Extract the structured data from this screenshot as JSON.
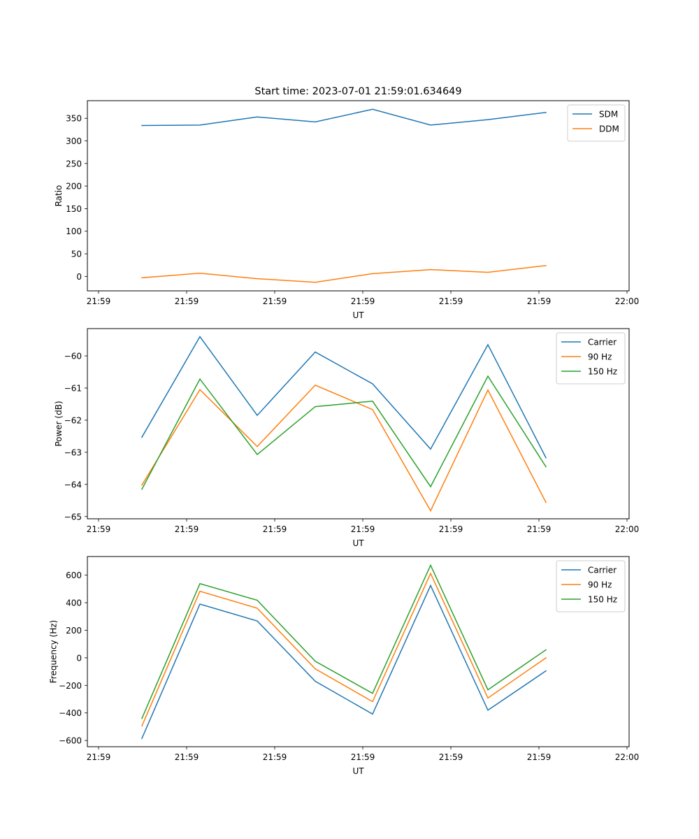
{
  "chart_data": [
    {
      "type": "line",
      "title": "Start time: 2023-07-01 21:59:01.634649",
      "xlabel": "UT",
      "ylabel": "Ratio",
      "x_tick_labels": [
        "21:59",
        "21:59",
        "21:59",
        "21:59",
        "21:59",
        "21:59",
        "21:59",
        "22:00"
      ],
      "y_ticks": [
        0,
        50,
        100,
        150,
        200,
        250,
        300,
        350
      ],
      "ylim": [
        -32,
        389
      ],
      "legend": "top-right",
      "grid": false,
      "series": [
        {
          "name": "SDM",
          "color": "#1f77b4",
          "values": [
            334,
            335,
            353,
            342,
            370,
            335,
            347,
            363
          ]
        },
        {
          "name": "DDM",
          "color": "#ff7f0e",
          "values": [
            -3,
            7,
            -5,
            -13,
            6,
            15,
            9,
            24
          ]
        }
      ]
    },
    {
      "type": "line",
      "title": "",
      "xlabel": "UT",
      "ylabel": "Power (dB)",
      "x_tick_labels": [
        "21:59",
        "21:59",
        "21:59",
        "21:59",
        "21:59",
        "21:59",
        "21:59",
        "22:00"
      ],
      "y_ticks": [
        -65,
        -64,
        -63,
        -62,
        -61,
        -60
      ],
      "ylim": [
        -65.07,
        -59.15
      ],
      "legend": "top-right",
      "grid": false,
      "series": [
        {
          "name": "Carrier",
          "color": "#1f77b4",
          "values": [
            -62.53,
            -59.4,
            -61.85,
            -59.88,
            -60.87,
            -62.9,
            -59.65,
            -63.17
          ]
        },
        {
          "name": "90 Hz",
          "color": "#ff7f0e",
          "values": [
            -64.02,
            -61.05,
            -62.82,
            -60.91,
            -61.67,
            -64.82,
            -61.06,
            -64.56
          ]
        },
        {
          "name": "150 Hz",
          "color": "#2ca02c",
          "values": [
            -64.15,
            -60.72,
            -63.07,
            -61.58,
            -61.41,
            -64.07,
            -60.63,
            -63.45
          ]
        }
      ]
    },
    {
      "type": "line",
      "title": "",
      "xlabel": "UT",
      "ylabel": "Frequency (Hz)",
      "x_tick_labels": [
        "21:59",
        "21:59",
        "21:59",
        "21:59",
        "21:59",
        "21:59",
        "21:59",
        "22:00"
      ],
      "y_ticks": [
        -600,
        -400,
        -200,
        0,
        200,
        400,
        600
      ],
      "ylim": [
        -645,
        735
      ],
      "legend": "top-right",
      "grid": false,
      "series": [
        {
          "name": "Carrier",
          "color": "#1f77b4",
          "values": [
            -585,
            390,
            267,
            -170,
            -408,
            525,
            -380,
            -95
          ]
        },
        {
          "name": "90 Hz",
          "color": "#ff7f0e",
          "values": [
            -495,
            483,
            360,
            -80,
            -318,
            612,
            -292,
            0
          ]
        },
        {
          "name": "150 Hz",
          "color": "#2ca02c",
          "values": [
            -440,
            538,
            418,
            -25,
            -258,
            672,
            -232,
            58
          ]
        }
      ]
    }
  ]
}
